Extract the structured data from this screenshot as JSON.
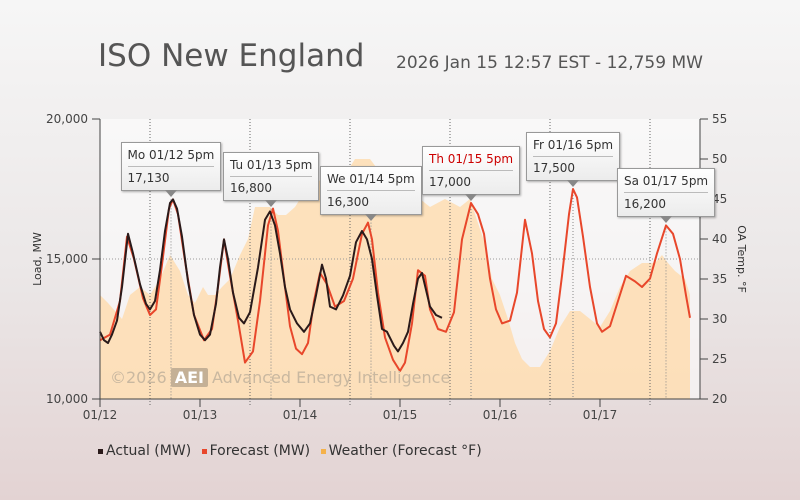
{
  "title": "ISO New England",
  "subtitle": "2026 Jan 15 12:57 EST - 12,759 MW",
  "watermark": {
    "prefix": "©2026",
    "badge": "AEI",
    "text": "Advanced Energy Intelligence"
  },
  "colors": {
    "actual": "#2a1a1a",
    "forecast": "#e8472b",
    "weather": "#ffd9a8",
    "highlight": "#cc0000"
  },
  "chart_data": {
    "type": "line",
    "xlabel": "",
    "ylabel": "Load, MW",
    "y2label": "OA Temp. °F",
    "x_ticks": [
      "01/12",
      "01/13",
      "01/14",
      "01/15",
      "01/16",
      "01/17"
    ],
    "ylim": [
      10000,
      20000
    ],
    "y_ticks": [
      "10,000",
      "15,000",
      "20,000"
    ],
    "y2lim": [
      20,
      55
    ],
    "y2_ticks": [
      "20",
      "25",
      "30",
      "35",
      "40",
      "45",
      "50",
      "55"
    ],
    "x_unit": "days since 01/12 00:00",
    "series": [
      {
        "name": "Actual (MW)",
        "axis": "left",
        "points": [
          [
            0,
            12400
          ],
          [
            0.04,
            12100
          ],
          [
            0.08,
            12000
          ],
          [
            0.12,
            12300
          ],
          [
            0.17,
            12800
          ],
          [
            0.22,
            14000
          ],
          [
            0.28,
            15900
          ],
          [
            0.33,
            15200
          ],
          [
            0.4,
            14100
          ],
          [
            0.46,
            13400
          ],
          [
            0.5,
            13200
          ],
          [
            0.55,
            13500
          ],
          [
            0.6,
            14600
          ],
          [
            0.65,
            16000
          ],
          [
            0.7,
            17000
          ],
          [
            0.73,
            17130
          ],
          [
            0.77,
            16800
          ],
          [
            0.82,
            15800
          ],
          [
            0.88,
            14200
          ],
          [
            0.94,
            13000
          ],
          [
            1.0,
            12300
          ],
          [
            1.05,
            12100
          ],
          [
            1.1,
            12300
          ],
          [
            1.16,
            13400
          ],
          [
            1.2,
            14700
          ],
          [
            1.24,
            15700
          ],
          [
            1.28,
            15000
          ],
          [
            1.33,
            13800
          ],
          [
            1.39,
            12900
          ],
          [
            1.44,
            12700
          ],
          [
            1.5,
            13100
          ],
          [
            1.58,
            14700
          ],
          [
            1.65,
            16400
          ],
          [
            1.7,
            16700
          ],
          [
            1.75,
            16200
          ],
          [
            1.8,
            15200
          ],
          [
            1.85,
            14000
          ],
          [
            1.9,
            13200
          ],
          [
            1.97,
            12700
          ],
          [
            2.04,
            12400
          ],
          [
            2.1,
            12700
          ],
          [
            2.16,
            13700
          ],
          [
            2.22,
            14800
          ],
          [
            2.26,
            14300
          ],
          [
            2.3,
            13300
          ],
          [
            2.36,
            13200
          ],
          [
            2.43,
            13700
          ],
          [
            2.5,
            14400
          ],
          [
            2.56,
            15600
          ],
          [
            2.62,
            16000
          ],
          [
            2.67,
            15700
          ],
          [
            2.72,
            15000
          ],
          [
            2.77,
            13700
          ],
          [
            2.82,
            12500
          ],
          [
            2.87,
            12400
          ],
          [
            2.94,
            11900
          ],
          [
            2.98,
            11700
          ],
          [
            3.03,
            12000
          ],
          [
            3.08,
            12400
          ],
          [
            3.13,
            13400
          ],
          [
            3.18,
            14300
          ],
          [
            3.22,
            14500
          ],
          [
            3.26,
            13900
          ],
          [
            3.3,
            13300
          ],
          [
            3.36,
            13000
          ],
          [
            3.42,
            12900
          ]
        ]
      },
      {
        "name": "Forecast (MW)",
        "axis": "left",
        "points": [
          [
            0,
            12100
          ],
          [
            0.1,
            12300
          ],
          [
            0.2,
            13500
          ],
          [
            0.27,
            15800
          ],
          [
            0.34,
            15000
          ],
          [
            0.43,
            13600
          ],
          [
            0.5,
            13000
          ],
          [
            0.56,
            13200
          ],
          [
            0.62,
            14800
          ],
          [
            0.69,
            16800
          ],
          [
            0.73,
            17130
          ],
          [
            0.78,
            16600
          ],
          [
            0.86,
            14700
          ],
          [
            0.94,
            13000
          ],
          [
            1.04,
            12100
          ],
          [
            1.12,
            12500
          ],
          [
            1.18,
            14000
          ],
          [
            1.24,
            15700
          ],
          [
            1.3,
            14400
          ],
          [
            1.38,
            12800
          ],
          [
            1.45,
            11300
          ],
          [
            1.53,
            11700
          ],
          [
            1.6,
            13500
          ],
          [
            1.68,
            16200
          ],
          [
            1.73,
            16800
          ],
          [
            1.78,
            16000
          ],
          [
            1.85,
            14000
          ],
          [
            1.9,
            12600
          ],
          [
            1.96,
            11800
          ],
          [
            2.02,
            11600
          ],
          [
            2.08,
            12000
          ],
          [
            2.14,
            13500
          ],
          [
            2.2,
            14500
          ],
          [
            2.27,
            14100
          ],
          [
            2.35,
            13300
          ],
          [
            2.44,
            13500
          ],
          [
            2.53,
            14300
          ],
          [
            2.62,
            15900
          ],
          [
            2.68,
            16300
          ],
          [
            2.72,
            15700
          ],
          [
            2.78,
            13800
          ],
          [
            2.85,
            12200
          ],
          [
            2.93,
            11400
          ],
          [
            3.0,
            11000
          ],
          [
            3.05,
            11300
          ],
          [
            3.12,
            12700
          ],
          [
            3.18,
            14600
          ],
          [
            3.25,
            14400
          ],
          [
            3.3,
            13200
          ],
          [
            3.38,
            12500
          ],
          [
            3.46,
            12400
          ],
          [
            3.54,
            13100
          ],
          [
            3.62,
            15700
          ],
          [
            3.71,
            17000
          ],
          [
            3.78,
            16600
          ],
          [
            3.84,
            15900
          ],
          [
            3.9,
            14300
          ],
          [
            3.96,
            13200
          ],
          [
            4.02,
            12700
          ],
          [
            4.1,
            12800
          ],
          [
            4.17,
            13800
          ],
          [
            4.25,
            16400
          ],
          [
            4.32,
            15200
          ],
          [
            4.38,
            13500
          ],
          [
            4.44,
            12500
          ],
          [
            4.5,
            12200
          ],
          [
            4.56,
            12700
          ],
          [
            4.62,
            14400
          ],
          [
            4.69,
            16600
          ],
          [
            4.73,
            17500
          ],
          [
            4.77,
            17200
          ],
          [
            4.83,
            15800
          ],
          [
            4.9,
            14000
          ],
          [
            4.97,
            12700
          ],
          [
            5.02,
            12400
          ],
          [
            5.1,
            12600
          ],
          [
            5.18,
            13500
          ],
          [
            5.26,
            14400
          ],
          [
            5.35,
            14200
          ],
          [
            5.42,
            14000
          ],
          [
            5.5,
            14300
          ],
          [
            5.57,
            15200
          ],
          [
            5.66,
            16200
          ],
          [
            5.73,
            15900
          ],
          [
            5.8,
            15000
          ],
          [
            5.86,
            13700
          ],
          [
            5.9,
            12900
          ]
        ]
      },
      {
        "name": "Weather (Forecast °F)",
        "axis": "right",
        "points": [
          [
            0,
            33
          ],
          [
            0.08,
            32
          ],
          [
            0.15,
            31
          ],
          [
            0.22,
            30
          ],
          [
            0.3,
            33
          ],
          [
            0.4,
            34
          ],
          [
            0.5,
            33
          ],
          [
            0.6,
            35
          ],
          [
            0.7,
            38
          ],
          [
            0.75,
            37
          ],
          [
            0.8,
            36
          ],
          [
            0.88,
            33
          ],
          [
            0.95,
            32
          ],
          [
            1.03,
            34
          ],
          [
            1.08,
            33
          ],
          [
            1.15,
            33
          ],
          [
            1.22,
            34
          ],
          [
            1.3,
            35
          ],
          [
            1.4,
            38
          ],
          [
            1.48,
            40
          ],
          [
            1.55,
            44
          ],
          [
            1.63,
            44
          ],
          [
            1.7,
            44
          ],
          [
            1.78,
            43
          ],
          [
            1.86,
            43
          ],
          [
            1.95,
            44
          ],
          [
            2.05,
            46
          ],
          [
            2.15,
            47
          ],
          [
            2.3,
            48
          ],
          [
            2.45,
            48
          ],
          [
            2.55,
            50
          ],
          [
            2.7,
            50
          ],
          [
            2.82,
            48
          ],
          [
            2.92,
            47
          ],
          [
            3.0,
            46
          ],
          [
            3.1,
            45
          ],
          [
            3.2,
            45
          ],
          [
            3.3,
            44
          ],
          [
            3.45,
            45
          ],
          [
            3.6,
            44
          ],
          [
            3.7,
            45
          ],
          [
            3.78,
            42
          ],
          [
            3.86,
            39
          ],
          [
            3.92,
            35
          ],
          [
            4.0,
            33
          ],
          [
            4.08,
            30
          ],
          [
            4.15,
            27
          ],
          [
            4.22,
            25
          ],
          [
            4.3,
            24
          ],
          [
            4.4,
            24
          ],
          [
            4.5,
            26
          ],
          [
            4.6,
            29
          ],
          [
            4.7,
            31
          ],
          [
            4.8,
            31
          ],
          [
            4.9,
            30
          ],
          [
            5.0,
            29
          ],
          [
            5.1,
            31
          ],
          [
            5.2,
            34
          ],
          [
            5.3,
            36
          ],
          [
            5.42,
            37
          ],
          [
            5.55,
            37
          ],
          [
            5.62,
            38
          ],
          [
            5.68,
            37
          ],
          [
            5.75,
            36
          ],
          [
            5.85,
            35
          ],
          [
            5.9,
            33
          ]
        ]
      }
    ],
    "annotations": [
      {
        "day": "Mo 01/12 5pm",
        "value": "17,130",
        "x": 0.71,
        "y": 17130,
        "highlight": false
      },
      {
        "day": "Tu 01/13 5pm",
        "value": "16,800",
        "x": 1.71,
        "y": 16800,
        "highlight": false
      },
      {
        "day": "We 01/14 5pm",
        "value": "16,300",
        "x": 2.71,
        "y": 16300,
        "highlight": false
      },
      {
        "day": "Th 01/15 5pm",
        "value": "17,000",
        "x": 3.71,
        "y": 17000,
        "highlight": true
      },
      {
        "day": "Fr 01/16 5pm",
        "value": "17,500",
        "x": 4.73,
        "y": 17500,
        "highlight": false
      },
      {
        "day": "Sa 01/17 5pm",
        "value": "16,200",
        "x": 5.66,
        "y": 16200,
        "highlight": false
      }
    ]
  }
}
